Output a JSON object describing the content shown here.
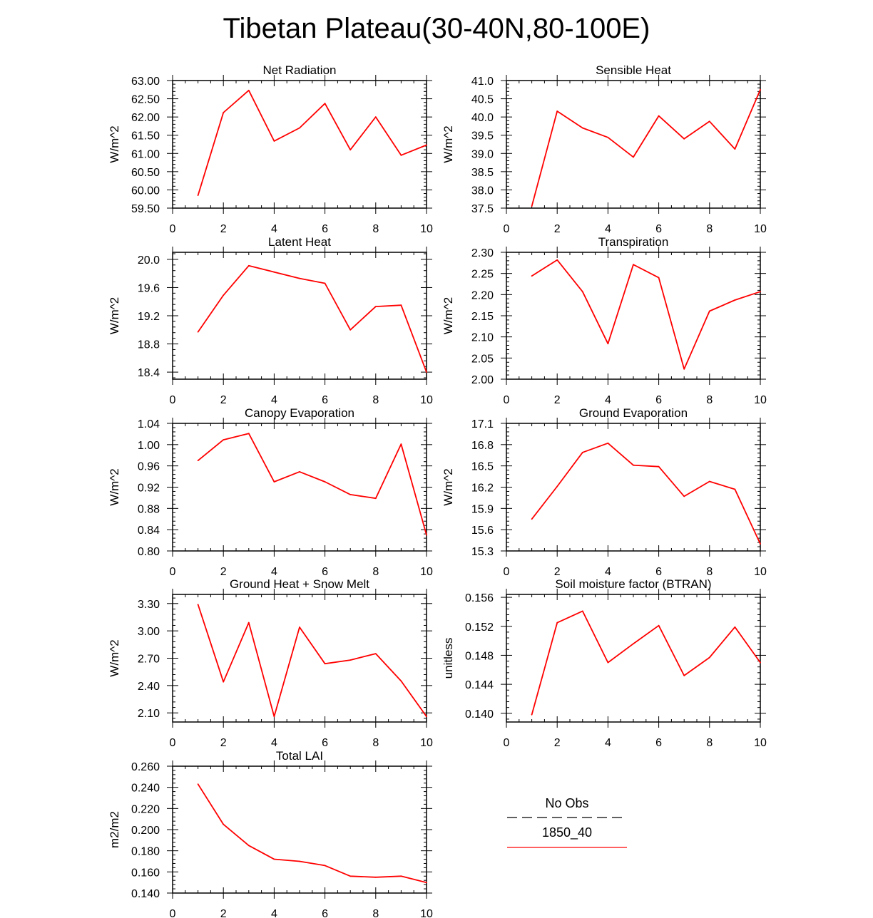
{
  "title": "Tibetan Plateau(30-40N,80-100E)",
  "line_color": "#ff0000",
  "chart_data": [
    {
      "type": "line",
      "title": "Net Radiation",
      "ylabel": "W/m^2",
      "xlim": [
        0,
        10
      ],
      "ylim": [
        59.5,
        63.0
      ],
      "xticks": [
        "0",
        "2",
        "4",
        "6",
        "8",
        "10"
      ],
      "yticks": [
        "59.50",
        "60.00",
        "60.50",
        "61.00",
        "61.50",
        "62.00",
        "62.50",
        "63.00"
      ],
      "series": [
        {
          "name": "1850_40",
          "x": [
            1,
            2,
            3,
            4,
            5,
            6,
            7,
            8,
            9,
            10
          ],
          "values": [
            59.85,
            62.12,
            62.73,
            61.34,
            61.7,
            62.37,
            61.1,
            62.0,
            60.95,
            61.23
          ]
        }
      ]
    },
    {
      "type": "line",
      "title": "Sensible Heat",
      "ylabel": "W/m^2",
      "xlim": [
        0,
        10
      ],
      "ylim": [
        37.5,
        41.0
      ],
      "xticks": [
        "0",
        "2",
        "4",
        "6",
        "8",
        "10"
      ],
      "yticks": [
        "37.5",
        "38.0",
        "38.5",
        "39.0",
        "39.5",
        "40.0",
        "40.5",
        "41.0"
      ],
      "series": [
        {
          "name": "1850_40",
          "x": [
            1,
            2,
            3,
            4,
            5,
            6,
            7,
            8,
            9,
            10
          ],
          "values": [
            37.55,
            40.16,
            39.7,
            39.44,
            38.9,
            40.03,
            39.4,
            39.88,
            39.12,
            40.75
          ]
        }
      ]
    },
    {
      "type": "line",
      "title": "Latent Heat",
      "ylabel": "W/m^2",
      "xlim": [
        0,
        10
      ],
      "ylim": [
        18.3,
        20.1
      ],
      "xticks": [
        "0",
        "2",
        "4",
        "6",
        "8",
        "10"
      ],
      "yticks": [
        "18.4",
        "18.8",
        "19.2",
        "19.6",
        "20.0"
      ],
      "series": [
        {
          "name": "1850_40",
          "x": [
            1,
            2,
            3,
            4,
            5,
            6,
            7,
            8,
            9,
            10
          ],
          "values": [
            18.97,
            19.49,
            19.91,
            19.82,
            19.73,
            19.66,
            19.0,
            19.33,
            19.35,
            18.4
          ]
        }
      ]
    },
    {
      "type": "line",
      "title": "Transpiration",
      "ylabel": "W/m^2",
      "xlim": [
        0,
        10
      ],
      "ylim": [
        2.0,
        2.3
      ],
      "xticks": [
        "0",
        "2",
        "4",
        "6",
        "8",
        "10"
      ],
      "yticks": [
        "2.00",
        "2.05",
        "2.10",
        "2.15",
        "2.20",
        "2.25",
        "2.30"
      ],
      "series": [
        {
          "name": "1850_40",
          "x": [
            1,
            2,
            3,
            4,
            5,
            6,
            7,
            8,
            9,
            10
          ],
          "values": [
            2.244,
            2.282,
            2.207,
            2.084,
            2.271,
            2.24,
            2.024,
            2.161,
            2.187,
            2.207
          ]
        }
      ]
    },
    {
      "type": "line",
      "title": "Canopy Evaporation",
      "ylabel": "W/m^2",
      "xlim": [
        0,
        10
      ],
      "ylim": [
        0.8,
        1.04
      ],
      "xticks": [
        "0",
        "2",
        "4",
        "6",
        "8",
        "10"
      ],
      "yticks": [
        "0.80",
        "0.84",
        "0.88",
        "0.92",
        "0.96",
        "1.00",
        "1.04"
      ],
      "series": [
        {
          "name": "1850_40",
          "x": [
            1,
            2,
            3,
            4,
            5,
            6,
            7,
            8,
            9,
            10
          ],
          "values": [
            0.97,
            1.009,
            1.021,
            0.93,
            0.949,
            0.93,
            0.906,
            0.899,
            1.001,
            0.83
          ]
        }
      ]
    },
    {
      "type": "line",
      "title": "Ground Evaporation",
      "ylabel": "W/m^2",
      "xlim": [
        0,
        10
      ],
      "ylim": [
        15.3,
        17.1
      ],
      "xticks": [
        "0",
        "2",
        "4",
        "6",
        "8",
        "10"
      ],
      "yticks": [
        "15.3",
        "15.6",
        "15.9",
        "16.2",
        "16.5",
        "16.8",
        "17.1"
      ],
      "series": [
        {
          "name": "1850_40",
          "x": [
            1,
            2,
            3,
            4,
            5,
            6,
            7,
            8,
            9,
            10
          ],
          "values": [
            15.75,
            16.21,
            16.69,
            16.82,
            16.51,
            16.49,
            16.07,
            16.28,
            16.17,
            15.4
          ]
        }
      ]
    },
    {
      "type": "line",
      "title": "Ground Heat + Snow Melt",
      "ylabel": "W/m^2",
      "xlim": [
        0,
        10
      ],
      "ylim": [
        2.0,
        3.4
      ],
      "xticks": [
        "0",
        "2",
        "4",
        "6",
        "8",
        "10"
      ],
      "yticks": [
        "2.10",
        "2.40",
        "2.70",
        "3.00",
        "3.30"
      ],
      "series": [
        {
          "name": "1850_40",
          "x": [
            1,
            2,
            3,
            4,
            5,
            6,
            7,
            8,
            9,
            10
          ],
          "values": [
            3.29,
            2.44,
            3.09,
            2.06,
            3.04,
            2.64,
            2.68,
            2.75,
            2.45,
            2.06
          ]
        }
      ]
    },
    {
      "type": "line",
      "title": "Soil moisture factor (BTRAN)",
      "ylabel": "unitless",
      "xlim": [
        0,
        10
      ],
      "ylim": [
        0.1388,
        0.1564
      ],
      "xticks": [
        "0",
        "2",
        "4",
        "6",
        "8",
        "10"
      ],
      "yticks": [
        "0.140",
        "0.144",
        "0.148",
        "0.152",
        "0.156"
      ],
      "series": [
        {
          "name": "1850_40",
          "x": [
            1,
            2,
            3,
            4,
            5,
            6,
            7,
            8,
            9,
            10
          ],
          "values": [
            0.1398,
            0.1525,
            0.1541,
            0.147,
            0.1496,
            0.1521,
            0.1452,
            0.1477,
            0.1519,
            0.147
          ]
        }
      ]
    },
    {
      "type": "line",
      "title": "Total LAI",
      "ylabel": "m2/m2",
      "xlim": [
        0,
        10
      ],
      "ylim": [
        0.14,
        0.26
      ],
      "xticks": [
        "0",
        "2",
        "4",
        "6",
        "8",
        "10"
      ],
      "yticks": [
        "0.140",
        "0.160",
        "0.180",
        "0.200",
        "0.220",
        "0.240",
        "0.260"
      ],
      "series": [
        {
          "name": "1850_40",
          "x": [
            1,
            2,
            3,
            4,
            5,
            6,
            7,
            8,
            9,
            10
          ],
          "values": [
            0.243,
            0.205,
            0.185,
            0.172,
            0.17,
            0.166,
            0.156,
            0.155,
            0.156,
            0.15
          ]
        }
      ]
    }
  ],
  "legend": {
    "placement": "bottom-right",
    "entries": [
      {
        "label": "No Obs",
        "style": "dashed",
        "color": "#000000"
      },
      {
        "label": "1850_40",
        "style": "solid",
        "color": "#ff0000"
      }
    ]
  }
}
